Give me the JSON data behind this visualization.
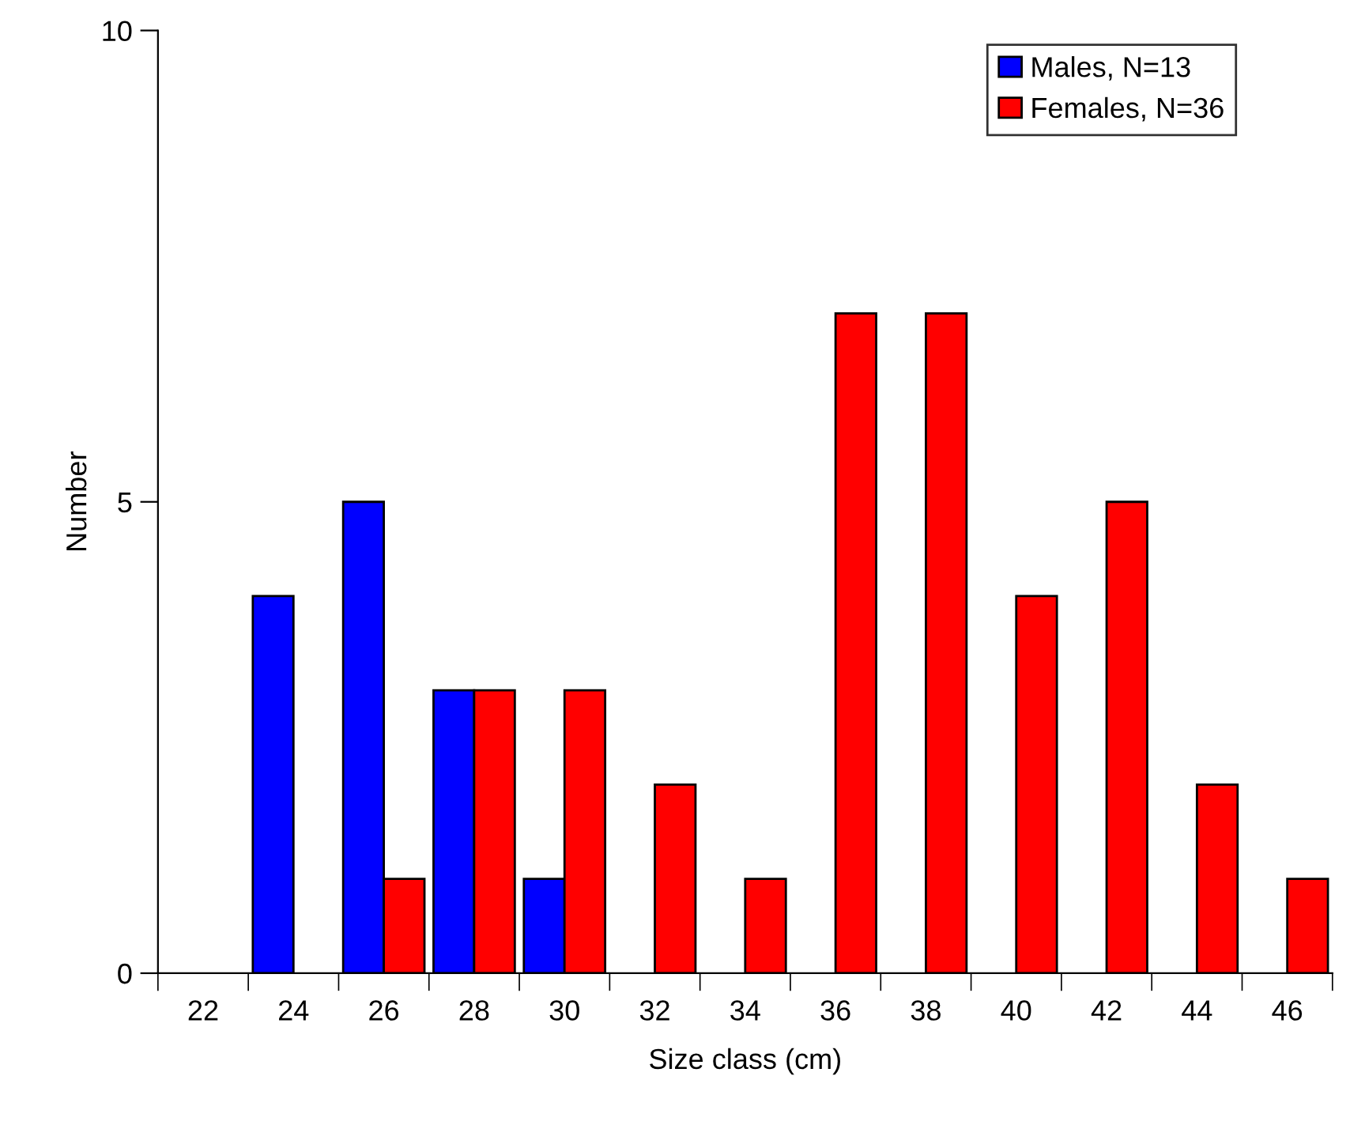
{
  "chart_data": {
    "type": "bar",
    "xlabel": "Size class (cm)",
    "ylabel": "Number",
    "categories": [
      "22",
      "24",
      "26",
      "28",
      "30",
      "32",
      "34",
      "36",
      "38",
      "40",
      "42",
      "44",
      "46"
    ],
    "series": [
      {
        "name": "Males, N=13",
        "color": "#0000ff",
        "values": [
          null,
          4,
          5,
          3,
          1,
          null,
          null,
          null,
          null,
          null,
          null,
          null,
          null
        ]
      },
      {
        "name": "Females, N=36",
        "color": "#ff0000",
        "values": [
          null,
          null,
          1,
          3,
          3,
          2,
          1,
          7,
          7,
          4,
          5,
          2,
          1
        ]
      }
    ],
    "ylim": [
      0,
      10
    ],
    "yticks": [
      0,
      5,
      10
    ],
    "grid": false,
    "legend": "top right"
  }
}
